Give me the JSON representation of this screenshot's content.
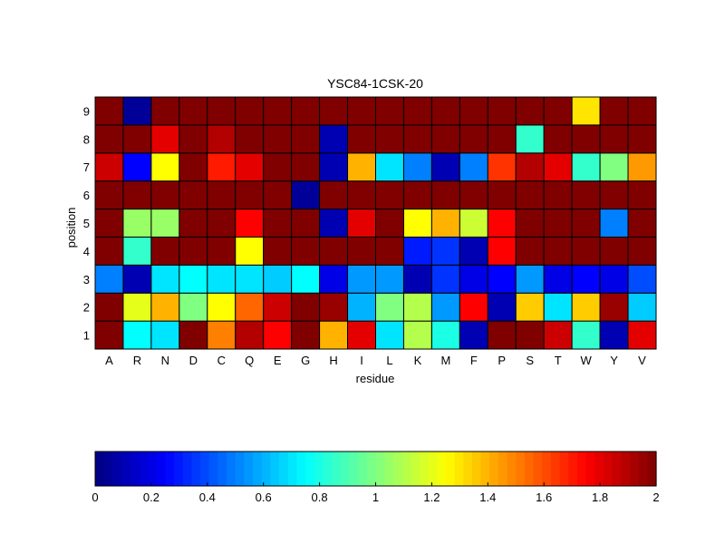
{
  "chart_data": {
    "type": "heatmap",
    "title": "YSC84-1CSK-20",
    "xlabel": "residue",
    "ylabel": "position",
    "x_categories": [
      "A",
      "R",
      "N",
      "D",
      "C",
      "Q",
      "E",
      "G",
      "H",
      "I",
      "L",
      "K",
      "M",
      "F",
      "P",
      "S",
      "T",
      "W",
      "Y",
      "V"
    ],
    "y_categories": [
      "1",
      "2",
      "3",
      "4",
      "5",
      "6",
      "7",
      "8",
      "9"
    ],
    "value_range": [
      0,
      2
    ],
    "colormap": "jet",
    "grid": true,
    "colorbar": {
      "placement": "bottom",
      "ticks": [
        0,
        0.2,
        0.4,
        0.6,
        0.8,
        1,
        1.2,
        1.4,
        1.6,
        1.8,
        2
      ],
      "tick_labels": [
        "0",
        "0.2",
        "0.4",
        "0.6",
        "0.8",
        "1",
        "1.2",
        "1.4",
        "1.6",
        "1.8",
        "2"
      ]
    },
    "values": [
      [
        2.0,
        0.75,
        0.7,
        2.0,
        1.5,
        1.9,
        1.75,
        2.0,
        1.4,
        1.8,
        0.7,
        1.1,
        0.8,
        0.1,
        2.0,
        2.0,
        1.85,
        0.85,
        0.1,
        1.8
      ],
      [
        2.0,
        1.2,
        1.4,
        1.0,
        1.25,
        1.55,
        1.85,
        2.0,
        1.95,
        0.6,
        1.0,
        1.1,
        0.55,
        1.75,
        0.1,
        1.35,
        0.7,
        1.35,
        1.95,
        0.65
      ],
      [
        0.5,
        0.1,
        0.7,
        0.75,
        0.7,
        0.7,
        0.65,
        0.75,
        0.2,
        0.55,
        0.55,
        0.1,
        0.35,
        0.2,
        0.25,
        0.55,
        0.2,
        0.25,
        0.2,
        0.4
      ],
      [
        2.0,
        0.85,
        2.0,
        2.0,
        2.0,
        1.25,
        2.0,
        2.0,
        2.0,
        2.0,
        2.0,
        0.3,
        0.35,
        0.1,
        1.75,
        2.0,
        2.0,
        2.0,
        2.0,
        2.0
      ],
      [
        2.0,
        1.05,
        1.05,
        2.0,
        2.0,
        1.75,
        2.0,
        2.0,
        0.1,
        1.8,
        2.0,
        1.25,
        1.4,
        1.15,
        1.75,
        2.0,
        2.0,
        2.0,
        0.5,
        2.0
      ],
      [
        2.0,
        2.0,
        2.0,
        2.0,
        2.0,
        2.0,
        2.0,
        0.05,
        2.0,
        2.0,
        2.0,
        2.0,
        2.0,
        2.0,
        2.0,
        2.0,
        2.0,
        2.0,
        2.0,
        2.0
      ],
      [
        1.85,
        0.25,
        1.25,
        2.0,
        1.7,
        1.8,
        2.0,
        2.0,
        0.1,
        1.4,
        0.7,
        0.5,
        0.1,
        0.5,
        1.65,
        1.9,
        1.8,
        0.85,
        1.0,
        1.45
      ],
      [
        2.0,
        2.0,
        1.8,
        2.0,
        1.9,
        2.0,
        2.0,
        2.0,
        0.1,
        2.0,
        2.0,
        2.0,
        2.0,
        2.0,
        2.0,
        0.85,
        2.0,
        2.0,
        2.0,
        2.0
      ],
      [
        2.0,
        0.05,
        2.0,
        2.0,
        2.0,
        2.0,
        2.0,
        2.0,
        2.0,
        2.0,
        2.0,
        2.0,
        2.0,
        2.0,
        2.0,
        2.0,
        2.0,
        1.3,
        2.0,
        2.0
      ]
    ]
  }
}
